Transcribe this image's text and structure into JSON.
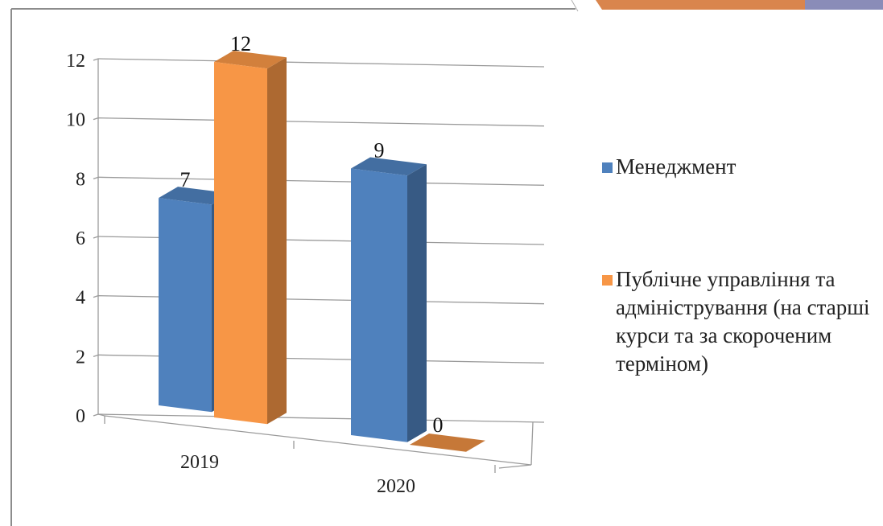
{
  "colors": {
    "series_1": "#4f81bd",
    "series_2": "#f79646",
    "frame": "#8c8c8c",
    "accent_orange": "#d9854d",
    "accent_purple": "#8a8cb8"
  },
  "chart_data": {
    "type": "bar",
    "projection": "3d-clustered",
    "categories": [
      "2019",
      "2020"
    ],
    "series": [
      {
        "name": "Менеджмент",
        "values": [
          7,
          9
        ]
      },
      {
        "name": "Публічне управління та адміністрування (на старші курси та за скороченим терміном)",
        "values": [
          12,
          0
        ]
      }
    ],
    "y_ticks": [
      "0",
      "2",
      "4",
      "6",
      "8",
      "10",
      "12"
    ],
    "ylim": [
      0,
      12
    ],
    "data_labels": [
      [
        "7",
        "9"
      ],
      [
        "12",
        "0"
      ]
    ],
    "grid": true,
    "legend_position": "right",
    "title": "",
    "xlabel": "",
    "ylabel": ""
  }
}
